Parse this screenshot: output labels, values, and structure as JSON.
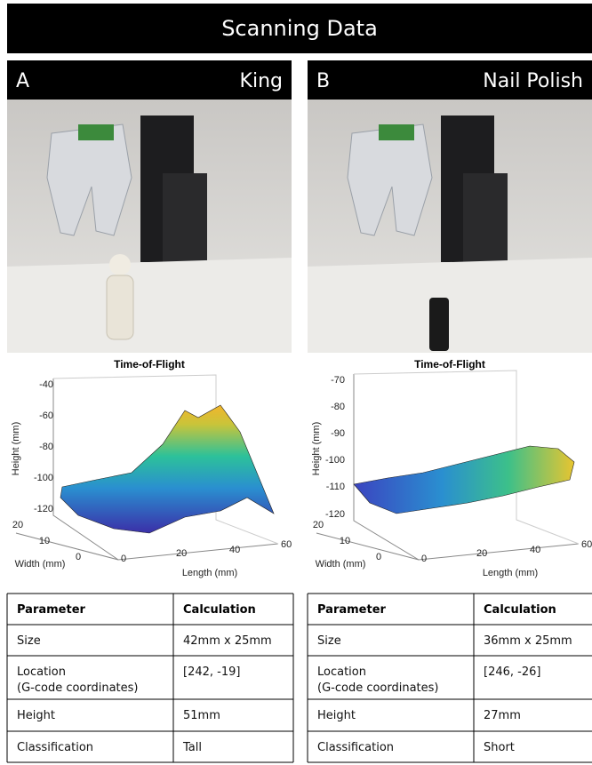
{
  "header": {
    "title": "Scanning Data"
  },
  "panels": [
    {
      "letter": "A",
      "name": "King",
      "plot": {
        "title": "Time-of-Flight",
        "z_label": "Height (mm)",
        "y_label": "Width (mm)",
        "x_label": "Length (mm)",
        "z_ticks": [
          -40,
          -60,
          -80,
          -100,
          -120
        ],
        "y_ticks": [
          20,
          10,
          0
        ],
        "x_ticks": [
          0,
          20,
          40,
          60
        ]
      },
      "table": {
        "header": [
          "Parameter",
          "Calculation"
        ],
        "rows": [
          [
            [
              "Size"
            ],
            [
              "42mm x 25mm"
            ]
          ],
          [
            [
              "Location",
              "(G-code coordinates)"
            ],
            [
              "[242, -19]"
            ]
          ],
          [
            [
              "Height"
            ],
            [
              "51mm"
            ]
          ],
          [
            [
              "Classification"
            ],
            [
              "Tall"
            ]
          ]
        ]
      }
    },
    {
      "letter": "B",
      "name": "Nail Polish",
      "plot": {
        "title": "Time-of-Flight",
        "z_label": "Height (mm)",
        "y_label": "Width (mm)",
        "x_label": "Length (mm)",
        "z_ticks": [
          -70,
          -80,
          -90,
          -100,
          -110,
          -120
        ],
        "y_ticks": [
          20,
          10,
          0
        ],
        "x_ticks": [
          0,
          20,
          40,
          60
        ]
      },
      "table": {
        "header": [
          "Parameter",
          "Calculation"
        ],
        "rows": [
          [
            [
              "Size"
            ],
            [
              "36mm x 25mm"
            ]
          ],
          [
            [
              "Location",
              "(G-code coordinates)"
            ],
            [
              "[246, -26]"
            ]
          ],
          [
            [
              "Height"
            ],
            [
              "27mm"
            ]
          ],
          [
            [
              "Classification"
            ],
            [
              "Short"
            ]
          ]
        ]
      }
    }
  ]
}
